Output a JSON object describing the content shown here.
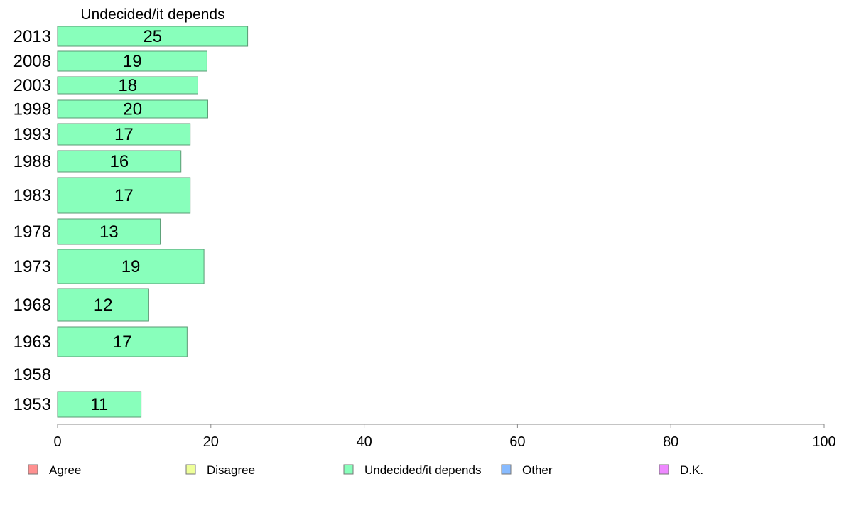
{
  "chart_data": {
    "type": "bar",
    "orientation": "horizontal",
    "title": "Undecided/it depends",
    "categories": [
      "2013",
      "2008",
      "2003",
      "1998",
      "1993",
      "1988",
      "1983",
      "1978",
      "1973",
      "1968",
      "1963",
      "1958",
      "1953"
    ],
    "series": [
      {
        "name": "Undecided/it depends",
        "color": "#88ffbb",
        "values": [
          25,
          19,
          18,
          20,
          17,
          16,
          17,
          13,
          19,
          12,
          17,
          null,
          11
        ]
      }
    ],
    "bar_values": [
      24.8,
      19.5,
      18.3,
      19.6,
      17.3,
      16.1,
      17.3,
      13.4,
      19.1,
      11.9,
      16.9,
      null,
      10.9
    ],
    "xlim": [
      0,
      100
    ],
    "x_ticks": [
      0,
      20,
      40,
      60,
      80,
      100
    ],
    "grid": false,
    "legend": {
      "placement": "bottom",
      "items": [
        {
          "label": "Agree",
          "color": "#ff9090"
        },
        {
          "label": "Disagree",
          "color": "#eeff99"
        },
        {
          "label": "Undecided/it depends",
          "color": "#88ffbb"
        },
        {
          "label": "Other",
          "color": "#88bbff"
        },
        {
          "label": "D.K.",
          "color": "#ee88ff"
        }
      ]
    }
  }
}
